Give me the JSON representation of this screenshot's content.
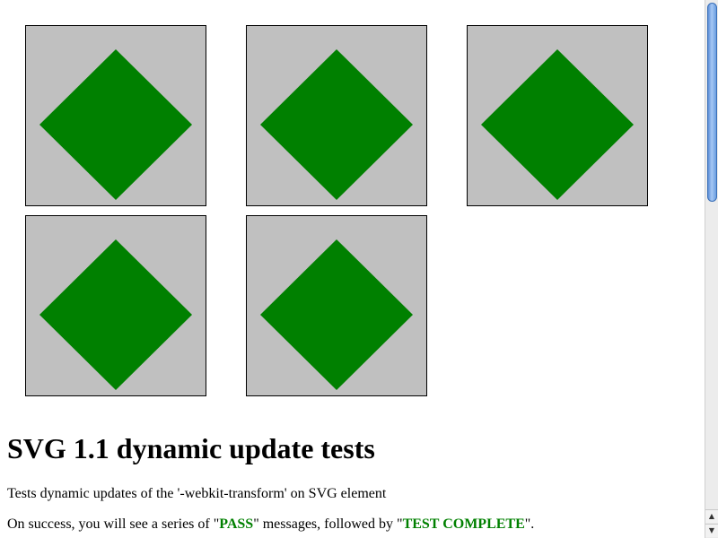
{
  "colors": {
    "tile_background": "#c0c0c0",
    "diamond_fill": "#008000",
    "pass_text": "#008000"
  },
  "tiles": [
    {
      "shape": "diamond",
      "fill": "#008000"
    },
    {
      "shape": "diamond",
      "fill": "#008000"
    },
    {
      "shape": "diamond",
      "fill": "#008000"
    },
    {
      "shape": "diamond",
      "fill": "#008000"
    },
    {
      "shape": "diamond",
      "fill": "#008000"
    }
  ],
  "heading": "SVG 1.1 dynamic update tests",
  "description": "Tests dynamic updates of the '-webkit-transform' on SVG element",
  "success_line": {
    "prefix": "On success, you will see a series of \"",
    "pass_word": "PASS",
    "middle": "\" messages, followed by \"",
    "complete_word": "TEST COMPLETE",
    "suffix": "\"."
  },
  "scrollbar": {
    "up_icon": "arrow-up-icon",
    "down_icon": "arrow-down-icon",
    "up_glyph": "▲",
    "down_glyph": "▼"
  }
}
